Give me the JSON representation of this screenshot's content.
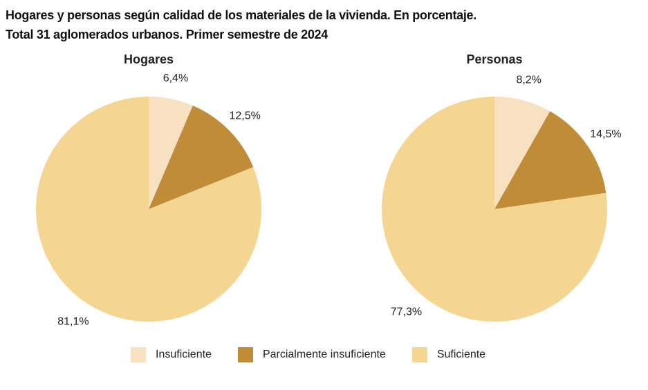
{
  "title_line1": "Hogares y personas según calidad de los materiales de la vivienda. En porcentaje.",
  "title_line2": "Total 31 aglomerados urbanos. Primer semestre de 2024",
  "chart_data": [
    {
      "type": "pie",
      "title": "Hogares",
      "categories": [
        "Insuficiente",
        "Parcialmente insuficiente",
        "Suficiente"
      ],
      "values": [
        6.4,
        12.5,
        81.1
      ],
      "labels": [
        "6,4%",
        "12,5%",
        "81,1%"
      ]
    },
    {
      "type": "pie",
      "title": "Personas",
      "categories": [
        "Insuficiente",
        "Parcialmente insuficiente",
        "Suficiente"
      ],
      "values": [
        8.2,
        14.5,
        77.3
      ],
      "labels": [
        "8,2%",
        "14,5%",
        "77,3%"
      ]
    }
  ],
  "legend": [
    {
      "label": "Insuficiente",
      "color": "#f8e1c1"
    },
    {
      "label": "Parcialmente insuficiente",
      "color": "#c08c37"
    },
    {
      "label": "Suficiente",
      "color": "#f5d592"
    }
  ]
}
